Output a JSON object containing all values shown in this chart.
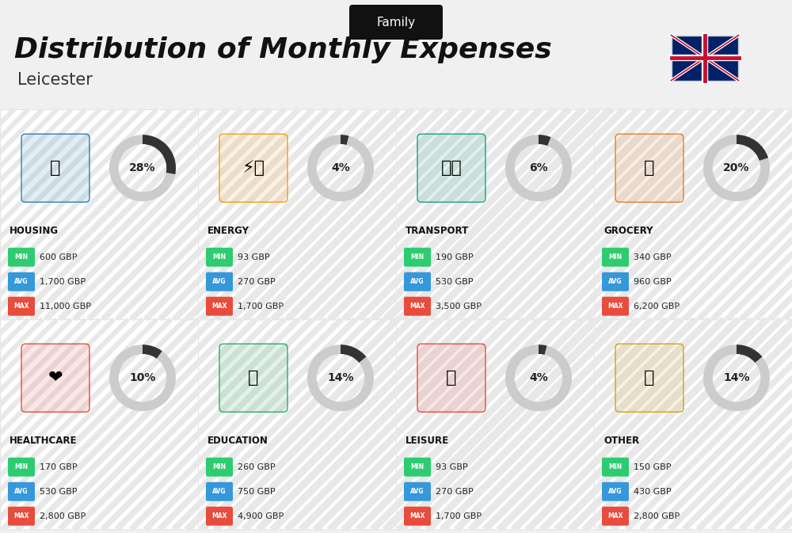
{
  "title": "Distribution of Monthly Expenses",
  "subtitle": "Leicester",
  "header_tag": "Family",
  "bg_color": "#f0f0f0",
  "categories": [
    {
      "name": "HOUSING",
      "percent": 28,
      "icon": "🏢",
      "min": "600 GBP",
      "avg": "1,700 GBP",
      "max": "11,000 GBP",
      "row": 0,
      "col": 0
    },
    {
      "name": "ENERGY",
      "percent": 4,
      "icon": "⚡",
      "min": "93 GBP",
      "avg": "270 GBP",
      "max": "1,700 GBP",
      "row": 0,
      "col": 1
    },
    {
      "name": "TRANSPORT",
      "percent": 6,
      "icon": "🚌",
      "min": "190 GBP",
      "avg": "530 GBP",
      "max": "3,500 GBP",
      "row": 0,
      "col": 2
    },
    {
      "name": "GROCERY",
      "percent": 20,
      "icon": "🛒",
      "min": "340 GBP",
      "avg": "960 GBP",
      "max": "6,200 GBP",
      "row": 0,
      "col": 3
    },
    {
      "name": "HEALTHCARE",
      "percent": 10,
      "icon": "❤️",
      "min": "170 GBP",
      "avg": "530 GBP",
      "max": "2,800 GBP",
      "row": 1,
      "col": 0
    },
    {
      "name": "EDUCATION",
      "percent": 14,
      "icon": "🎓",
      "min": "260 GBP",
      "avg": "750 GBP",
      "max": "4,900 GBP",
      "row": 1,
      "col": 1
    },
    {
      "name": "LEISURE",
      "percent": 4,
      "icon": "🛍️",
      "min": "93 GBP",
      "avg": "270 GBP",
      "max": "1,700 GBP",
      "row": 1,
      "col": 2
    },
    {
      "name": "OTHER",
      "percent": 14,
      "icon": "💰",
      "min": "150 GBP",
      "avg": "430 GBP",
      "max": "2,800 GBP",
      "row": 1,
      "col": 3
    }
  ],
  "min_color": "#2ecc71",
  "avg_color": "#3498db",
  "max_color": "#e74c3c",
  "arc_color": "#333333",
  "arc_bg_color": "#cccccc",
  "cell_bg": "#ffffff"
}
